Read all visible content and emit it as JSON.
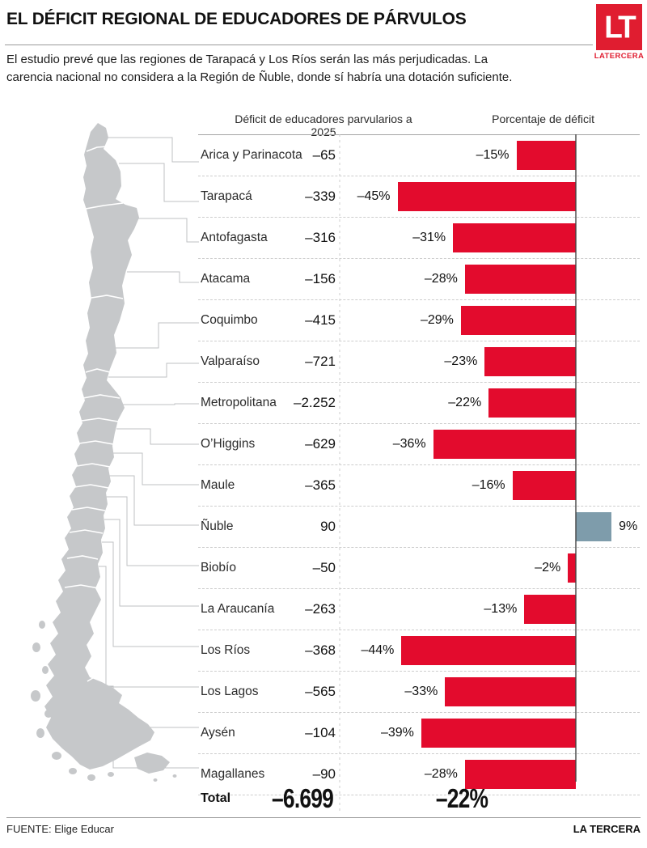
{
  "header": {
    "title": "EL DÉFICIT REGIONAL DE EDUCADORES DE PÁRVULOS"
  },
  "logo": {
    "mark": "LT",
    "name": "LATERCERA"
  },
  "intro": {
    "text": "El estudio prevé que las regiones de Tarapacá y Los Ríos serán las más perjudicadas. La carencia nacional no considera a la Región de Ñuble, donde sí habría una dotación suficiente."
  },
  "columns": {
    "left": "Déficit de educadores parvularios a 2025",
    "right": "Porcentaje de déficit"
  },
  "chart_data": {
    "type": "bar",
    "orientation": "horizontal",
    "title": "El déficit regional de educadores de párvulos",
    "categories": [
      "Arica y Parinacota",
      "Tarapacá",
      "Antofagasta",
      "Atacama",
      "Coquimbo",
      "Valparaíso",
      "Metropolitana",
      "O’Higgins",
      "Maule",
      "Ñuble",
      "Biobío",
      "La Araucanía",
      "Los Ríos",
      "Los Lagos",
      "Aysén",
      "Magallanes"
    ],
    "series": [
      {
        "name": "Déficit de educadores parvularios a 2025",
        "values": [
          -65,
          -339,
          -316,
          -156,
          -415,
          -721,
          -2252,
          -629,
          -365,
          90,
          -50,
          -263,
          -368,
          -565,
          -104,
          -90
        ],
        "labels": [
          "–65",
          "–339",
          "–316",
          "–156",
          "–415",
          "–721",
          "–2.252",
          "–629",
          "–365",
          "90",
          "–50",
          "–263",
          "–368",
          "–565",
          "–104",
          "–90"
        ]
      },
      {
        "name": "Porcentaje de déficit",
        "values": [
          -15,
          -45,
          -31,
          -28,
          -29,
          -23,
          -22,
          -36,
          -16,
          9,
          -2,
          -13,
          -44,
          -33,
          -39,
          -28
        ],
        "labels": [
          "–15%",
          "–45%",
          "–31%",
          "–28%",
          "–29%",
          "–23%",
          "–22%",
          "–36%",
          "–16%",
          "9%",
          "–2%",
          "–13%",
          "–44%",
          "–33%",
          "–39%",
          "–28%"
        ]
      }
    ],
    "total": {
      "label": "Total",
      "deficit": -6699,
      "deficit_label": "–6.699",
      "pct": -22,
      "pct_label": "–22%"
    },
    "colors": {
      "deficit_bar": "#e30b2d",
      "surplus_bar": "#7e9cab",
      "map": "#c6c8ca"
    },
    "axis": {
      "unit": "percent",
      "baseline": 0,
      "bars_grow": "left-for-negative"
    },
    "legend_position": "none",
    "grid": "dashed-row-separators"
  },
  "footer": {
    "source": "FUENTE: Elige Educar",
    "brand": "LA TERCERA"
  }
}
